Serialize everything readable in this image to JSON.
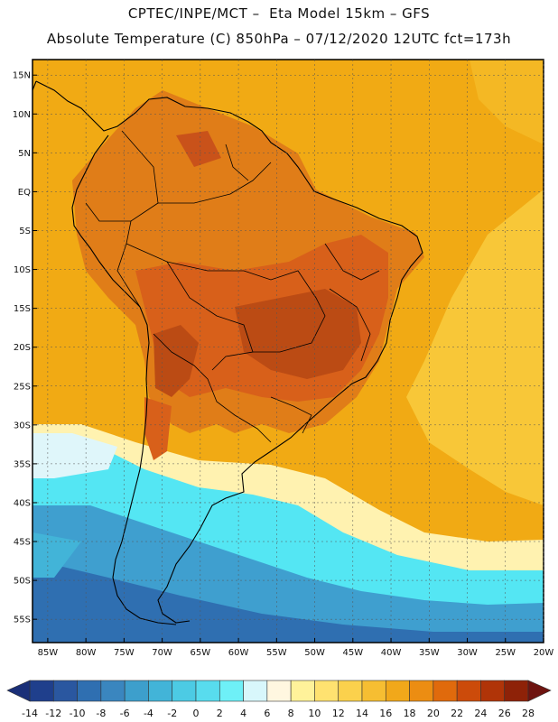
{
  "title_line1": "CPTEC/INPE/MCT –  Eta Model 15km – GFS",
  "title_line2": "Absolute Temperature (C) 850hPa – 07/12/2020 12UTC fct=173h",
  "lat_labels": [
    "15N",
    "10N",
    "5N",
    "EQ",
    "5S",
    "10S",
    "15S",
    "20S",
    "25S",
    "30S",
    "35S",
    "40S",
    "45S",
    "50S",
    "55S"
  ],
  "lon_labels": [
    "85W",
    "80W",
    "75W",
    "70W",
    "65W",
    "60W",
    "55W",
    "50W",
    "45W",
    "40W",
    "35W",
    "30W",
    "25W",
    "20W"
  ],
  "colorbar": {
    "labels": [
      "-14",
      "-12",
      "-10",
      "-8",
      "-6",
      "-4",
      "-2",
      "0",
      "2",
      "4",
      "6",
      "8",
      "10",
      "12",
      "14",
      "16",
      "18",
      "20",
      "22",
      "24",
      "26",
      "28"
    ],
    "colors": [
      "#1f3f8c",
      "#2a57a0",
      "#2f6fb1",
      "#3a86bf",
      "#3d9fcc",
      "#42b4d8",
      "#4ccbe4",
      "#58dcee",
      "#6ef0f7",
      "#d8f7fb",
      "#fff7e0",
      "#fff29a",
      "#ffe270",
      "#fbd14c",
      "#f6be32",
      "#f1a81a",
      "#ec8d12",
      "#e06a0c",
      "#cc4b0a",
      "#b03408",
      "#8e2208"
    ]
  },
  "field_colors": {
    "ocean_warm": "#f1aa14",
    "ocean_yellow": "#f9cd3e",
    "land_hot": "#d8601a",
    "land_hottest": "#bb4b14",
    "cold_cyan": "#54e6f3",
    "cold_blue": "#3f9fcf",
    "pale": "#dff6fa"
  }
}
